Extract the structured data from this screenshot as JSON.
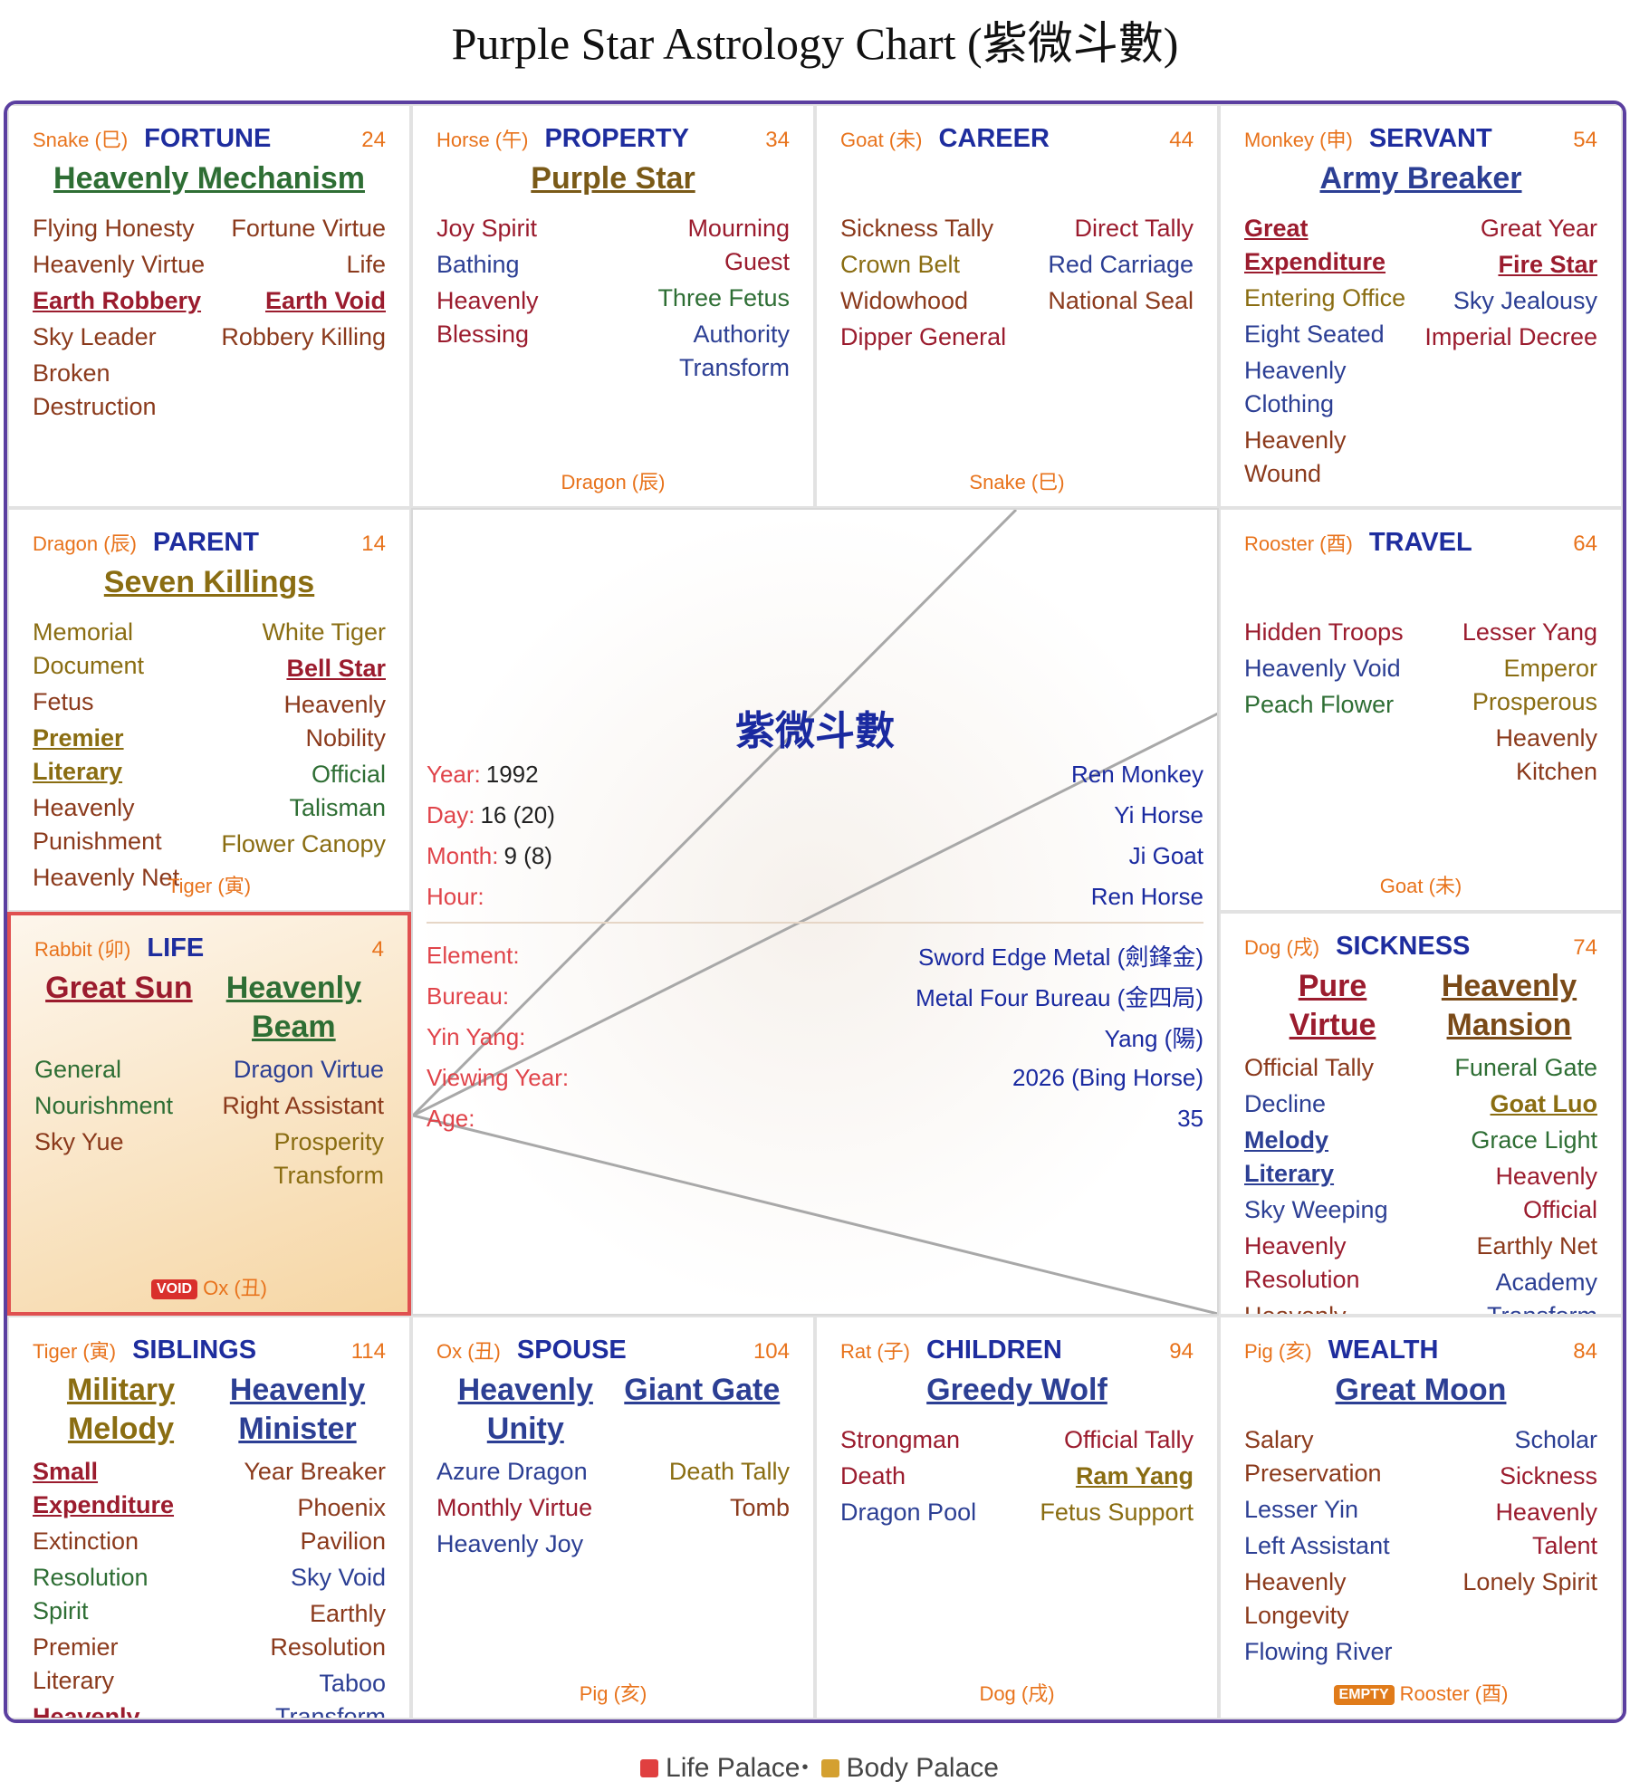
{
  "title": "Purple Star Astrology Chart (紫微斗數)",
  "palaces": [
    {
      "branch": "Snake (巳)",
      "name": "FORTUNE",
      "number": 24,
      "main_stars": [
        {
          "name": "Heavenly Mechanism",
          "color": "#2e6e34"
        }
      ],
      "left_stars": [
        {
          "name": "Flying Honesty",
          "color": "#8b3a1c"
        },
        {
          "name": "Heavenly Virtue",
          "color": "#8b3a1c"
        },
        {
          "name": "Earth Robbery",
          "color": "#9b1c2e",
          "bold": true
        },
        {
          "name": "Sky Leader",
          "color": "#8b3a1c"
        },
        {
          "name": "Broken Destruction",
          "color": "#8b3a1c"
        }
      ],
      "right_stars": [
        {
          "name": "Fortune Virtue",
          "color": "#8b3a1c"
        },
        {
          "name": "Life",
          "color": "#8b3a1c"
        },
        {
          "name": "Earth Void",
          "color": "#9b1c2e",
          "bold": true
        },
        {
          "name": "Robbery Killing",
          "color": "#8b3a1c"
        }
      ]
    },
    {
      "branch": "Horse (午)",
      "name": "PROPERTY",
      "number": 34,
      "main_stars": [
        {
          "name": "Purple Star",
          "color": "#7a5a18"
        }
      ],
      "left_stars": [
        {
          "name": "Joy Spirit",
          "color": "#9b1c2e"
        },
        {
          "name": "Bathing",
          "color": "#2c3f94"
        },
        {
          "name": "Heavenly Blessing",
          "color": "#9b1c2e"
        }
      ],
      "right_stars": [
        {
          "name": "Mourning Guest",
          "color": "#9b1c2e"
        },
        {
          "name": "Three Fetus",
          "color": "#2e6e34"
        },
        {
          "name": "Authority Transform",
          "color": "#2c3f94"
        }
      ],
      "footer": "Dragon (辰)"
    },
    {
      "branch": "Goat (未)",
      "name": "CAREER",
      "number": 44,
      "left_stars": [
        {
          "name": "Sickness Tally",
          "color": "#8b3a1c"
        },
        {
          "name": "Crown Belt",
          "color": "#8a6d12"
        },
        {
          "name": "Widowhood",
          "color": "#8b3a1c"
        },
        {
          "name": "Dipper General",
          "color": "#9b1c2e"
        }
      ],
      "right_stars": [
        {
          "name": "Direct Tally",
          "color": "#9b1c2e"
        },
        {
          "name": "Red Carriage",
          "color": "#2c3f94"
        },
        {
          "name": "National Seal",
          "color": "#8b3a1c"
        }
      ],
      "footer": "Snake (巳)"
    },
    {
      "branch": "Monkey (申)",
      "name": "SERVANT",
      "number": 54,
      "main_stars": [
        {
          "name": "Army Breaker",
          "color": "#2c3f94"
        }
      ],
      "left_stars": [
        {
          "name": "Great Expenditure",
          "color": "#9b1c2e",
          "bold": true
        },
        {
          "name": "Entering Office",
          "color": "#8a6d12"
        },
        {
          "name": "Eight Seated",
          "color": "#2c3f94"
        },
        {
          "name": "Heavenly Clothing",
          "color": "#2c3f94"
        },
        {
          "name": "Heavenly Wound",
          "color": "#8b3a1c"
        }
      ],
      "right_stars": [
        {
          "name": "Great Year",
          "color": "#9b1c2e"
        },
        {
          "name": "Fire Star",
          "color": "#9b1c2e",
          "bold": true
        },
        {
          "name": "Sky Jealousy",
          "color": "#2c3f94"
        },
        {
          "name": "Imperial Decree",
          "color": "#9b1c2e"
        }
      ]
    },
    {
      "branch": "Dragon (辰)",
      "name": "PARENT",
      "number": 14,
      "main_stars": [
        {
          "name": "Seven Killings",
          "color": "#8a6d12"
        }
      ],
      "left_stars": [
        {
          "name": "Memorial Document",
          "color": "#8a6d12"
        },
        {
          "name": "Fetus",
          "color": "#8b3a1c"
        },
        {
          "name": "Premier Literary",
          "color": "#8a6d12",
          "bold": true
        },
        {
          "name": "Heavenly Punishment",
          "color": "#8b3a1c"
        },
        {
          "name": "Heavenly Net",
          "color": "#8b3a1c"
        }
      ],
      "right_stars": [
        {
          "name": "White Tiger",
          "color": "#8a6d12"
        },
        {
          "name": "Bell Star",
          "color": "#9b1c2e",
          "bold": true
        },
        {
          "name": "Heavenly Nobility",
          "color": "#8b3a1c"
        },
        {
          "name": "Official Talisman",
          "color": "#2e6e34"
        },
        {
          "name": "Flower Canopy",
          "color": "#8a6d12"
        }
      ],
      "footer": "Tiger (寅)"
    },
    {
      "branch": "Rooster (酉)",
      "name": "TRAVEL",
      "number": 64,
      "left_stars": [
        {
          "name": "Hidden Troops",
          "color": "#9b1c2e"
        },
        {
          "name": "Heavenly Void",
          "color": "#2c3f94"
        },
        {
          "name": "Peach Flower",
          "color": "#2e6e34"
        }
      ],
      "right_stars": [
        {
          "name": "Lesser Yang",
          "color": "#9b1c2e"
        },
        {
          "name": "Emperor Prosperous",
          "color": "#8a6d12"
        },
        {
          "name": "Heavenly Kitchen",
          "color": "#8b3a1c"
        }
      ],
      "footer": "Goat (未)"
    },
    {
      "branch": "Rabbit (卯)",
      "name": "LIFE",
      "number": 4,
      "life_palace": true,
      "main_stars": [
        {
          "name": "Great Sun",
          "color": "#9b1c2e"
        },
        {
          "name": "Heavenly Beam",
          "color": "#2e6e34"
        }
      ],
      "left_stars": [
        {
          "name": "General",
          "color": "#2e6e34"
        },
        {
          "name": "Nourishment",
          "color": "#2e6e34"
        },
        {
          "name": "Sky Yue",
          "color": "#8b3a1c"
        }
      ],
      "right_stars": [
        {
          "name": "Dragon Virtue",
          "color": "#2c3f94"
        },
        {
          "name": "Right Assistant",
          "color": "#8b3a1c"
        },
        {
          "name": "Prosperity Transform",
          "color": "#8a6d12"
        }
      ],
      "badge": {
        "text": "VOID",
        "color": "#d9302c"
      },
      "footer": "Ox (丑)"
    },
    {
      "branch": "Dog (戌)",
      "name": "SICKNESS",
      "number": 74,
      "main_stars": [
        {
          "name": "Pure Virtue",
          "color": "#9b1c2e"
        },
        {
          "name": "Heavenly Mansion",
          "color": "#7a4a18"
        }
      ],
      "left_stars": [
        {
          "name": "Official Tally",
          "color": "#8b3a1c"
        },
        {
          "name": "Decline",
          "color": "#2c3f94"
        },
        {
          "name": "Melody Literary",
          "color": "#2c3f94",
          "bold": true
        },
        {
          "name": "Sky Weeping",
          "color": "#2c3f94"
        },
        {
          "name": "Heavenly Resolution",
          "color": "#9b1c2e"
        },
        {
          "name": "Heavenly Envoy",
          "color": "#8b3a1c"
        }
      ],
      "right_stars": [
        {
          "name": "Funeral Gate",
          "color": "#2e6e34"
        },
        {
          "name": "Goat Luo",
          "color": "#8a6d12",
          "bold": true
        },
        {
          "name": "Grace Light",
          "color": "#2e6e34"
        },
        {
          "name": "Heavenly Official",
          "color": "#9b1c2e"
        },
        {
          "name": "Earthly Net",
          "color": "#8b3a1c"
        },
        {
          "name": "Academy Transform",
          "color": "#2c3f94"
        }
      ]
    },
    {
      "branch": "Tiger (寅)",
      "name": "SIBLINGS",
      "number": 114,
      "main_stars": [
        {
          "name": "Military Melody",
          "color": "#8a6d12"
        },
        {
          "name": "Heavenly Minister",
          "color": "#2c3f94"
        }
      ],
      "left_stars": [
        {
          "name": "Small Expenditure",
          "color": "#9b1c2e",
          "bold": true
        },
        {
          "name": "Extinction",
          "color": "#8b3a1c"
        },
        {
          "name": "Resolution Spirit",
          "color": "#2e6e34"
        },
        {
          "name": "Premier Literary",
          "color": "#8b3a1c"
        },
        {
          "name": "Heavenly Horse",
          "color": "#9b1c2e",
          "bold": true
        }
      ],
      "right_stars": [
        {
          "name": "Year Breaker",
          "color": "#8b3a1c"
        },
        {
          "name": "Phoenix Pavilion",
          "color": "#8b3a1c"
        },
        {
          "name": "Sky Void",
          "color": "#2c3f94"
        },
        {
          "name": "Earthly Resolution",
          "color": "#8b3a1c"
        },
        {
          "name": "Taboo Transform",
          "color": "#2c3f94"
        }
      ]
    },
    {
      "branch": "Ox (丑)",
      "name": "SPOUSE",
      "number": 104,
      "main_stars": [
        {
          "name": "Heavenly Unity",
          "color": "#2c3f94"
        },
        {
          "name": "Giant Gate",
          "color": "#2c3f94"
        }
      ],
      "left_stars": [
        {
          "name": "Azure Dragon",
          "color": "#2c3f94"
        },
        {
          "name": "Monthly Virtue",
          "color": "#9b1c2e"
        },
        {
          "name": "Heavenly Joy",
          "color": "#2c3f94"
        }
      ],
      "right_stars": [
        {
          "name": "Death Tally",
          "color": "#8a6d12"
        },
        {
          "name": "Tomb",
          "color": "#8b3a1c"
        }
      ],
      "footer": "Pig (亥)"
    },
    {
      "branch": "Rat (子)",
      "name": "CHILDREN",
      "number": 94,
      "main_stars": [
        {
          "name": "Greedy Wolf",
          "color": "#2c3f94"
        }
      ],
      "left_stars": [
        {
          "name": "Strongman",
          "color": "#9b1c2e"
        },
        {
          "name": "Death",
          "color": "#9b1c2e"
        },
        {
          "name": "Dragon Pool",
          "color": "#2c3f94"
        }
      ],
      "right_stars": [
        {
          "name": "Official Tally",
          "color": "#9b1c2e"
        },
        {
          "name": "Ram Yang",
          "color": "#8a6d12",
          "bold": true
        },
        {
          "name": "Fetus Support",
          "color": "#8a6d12"
        }
      ],
      "footer": "Dog (戌)"
    },
    {
      "branch": "Pig (亥)",
      "name": "WEALTH",
      "number": 84,
      "main_stars": [
        {
          "name": "Great Moon",
          "color": "#2c3f94"
        }
      ],
      "left_stars": [
        {
          "name": "Salary Preservation",
          "color": "#8b3a1c"
        },
        {
          "name": "Lesser Yin",
          "color": "#2c3f94"
        },
        {
          "name": "Left Assistant",
          "color": "#2c3f94"
        },
        {
          "name": "Heavenly Longevity",
          "color": "#8b3a1c"
        },
        {
          "name": "Flowing River",
          "color": "#2c3f94"
        }
      ],
      "right_stars": [
        {
          "name": "Scholar",
          "color": "#2c3f94"
        },
        {
          "name": "Sickness",
          "color": "#9b1c2e"
        },
        {
          "name": "Heavenly Talent",
          "color": "#9b1c2e"
        },
        {
          "name": "Lonely Spirit",
          "color": "#8b3a1c"
        }
      ],
      "badge": {
        "text": "EMPTY",
        "color": "#e07b1a"
      },
      "footer": "Rooster (酉)"
    }
  ],
  "center": {
    "title": "紫微斗數",
    "rows": [
      {
        "label": "Year:",
        "value": "1992",
        "stem": "Ren Monkey"
      },
      {
        "label": "Day:",
        "value": "16 (20)",
        "stem": "Yi Horse"
      },
      {
        "label": "Month:",
        "value": "9 (8)",
        "stem": "Ji Goat"
      },
      {
        "label": "Hour:",
        "stem": "Ren Horse"
      }
    ],
    "details": [
      {
        "label": "Element:",
        "value": "Sword Edge Metal (劍鋒金)"
      },
      {
        "label": "Bureau:",
        "value": "Metal Four Bureau (金四局)"
      },
      {
        "label": "Yin Yang:",
        "value": "Yang (陽)"
      },
      {
        "label": "Viewing Year:",
        "value": "2026 (Bing Horse)"
      },
      {
        "label": "Age:",
        "value": "35"
      }
    ]
  },
  "legend": [
    {
      "label": "Life Palace",
      "color": "#e04040"
    },
    {
      "label": "Body Palace",
      "color": "#d4a030"
    }
  ]
}
